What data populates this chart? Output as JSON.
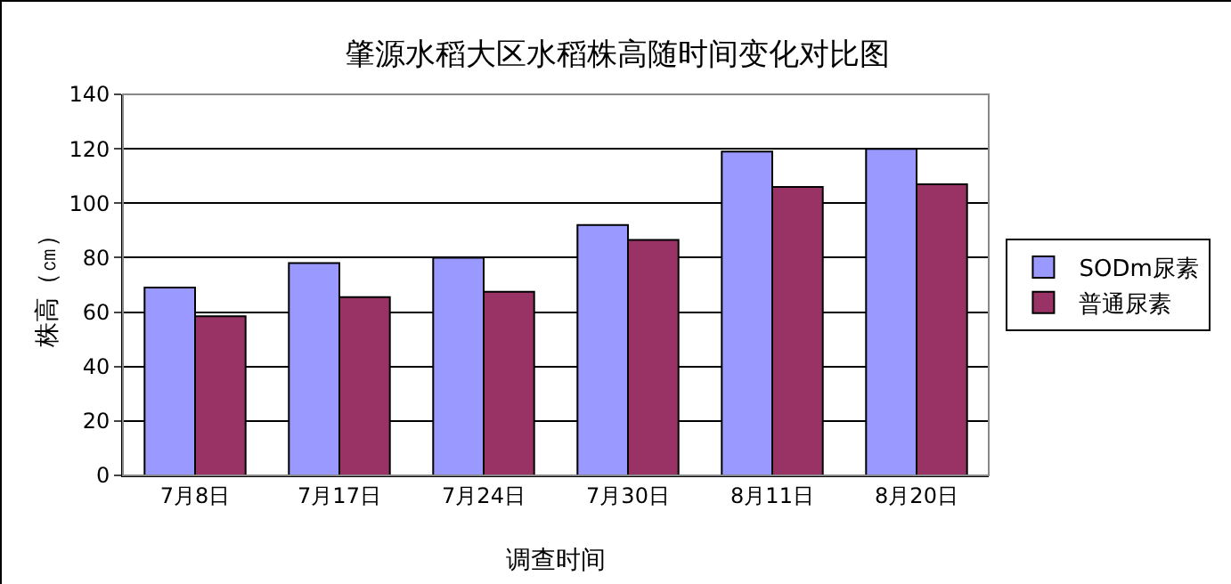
{
  "chart_data": {
    "type": "bar",
    "title": "肇源水稻大区水稻株高随时间变化对比图",
    "xlabel": "调查时间",
    "ylabel": "株高（㎝）",
    "categories": [
      "7月8日",
      "7月17日",
      "7月24日",
      "7月30日",
      "8月11日",
      "8月20日"
    ],
    "series": [
      {
        "name": "SODm尿素",
        "color": "#9999ff",
        "values": [
          69,
          78,
          80,
          92,
          119,
          120
        ]
      },
      {
        "name": "普通尿素",
        "color": "#993366",
        "values": [
          58.5,
          65.5,
          67.5,
          86.5,
          106,
          107
        ]
      }
    ],
    "ylim": [
      0,
      140
    ],
    "yticks": [
      0,
      20,
      40,
      60,
      80,
      100,
      120,
      140
    ],
    "grid": "y",
    "legend": "right"
  }
}
